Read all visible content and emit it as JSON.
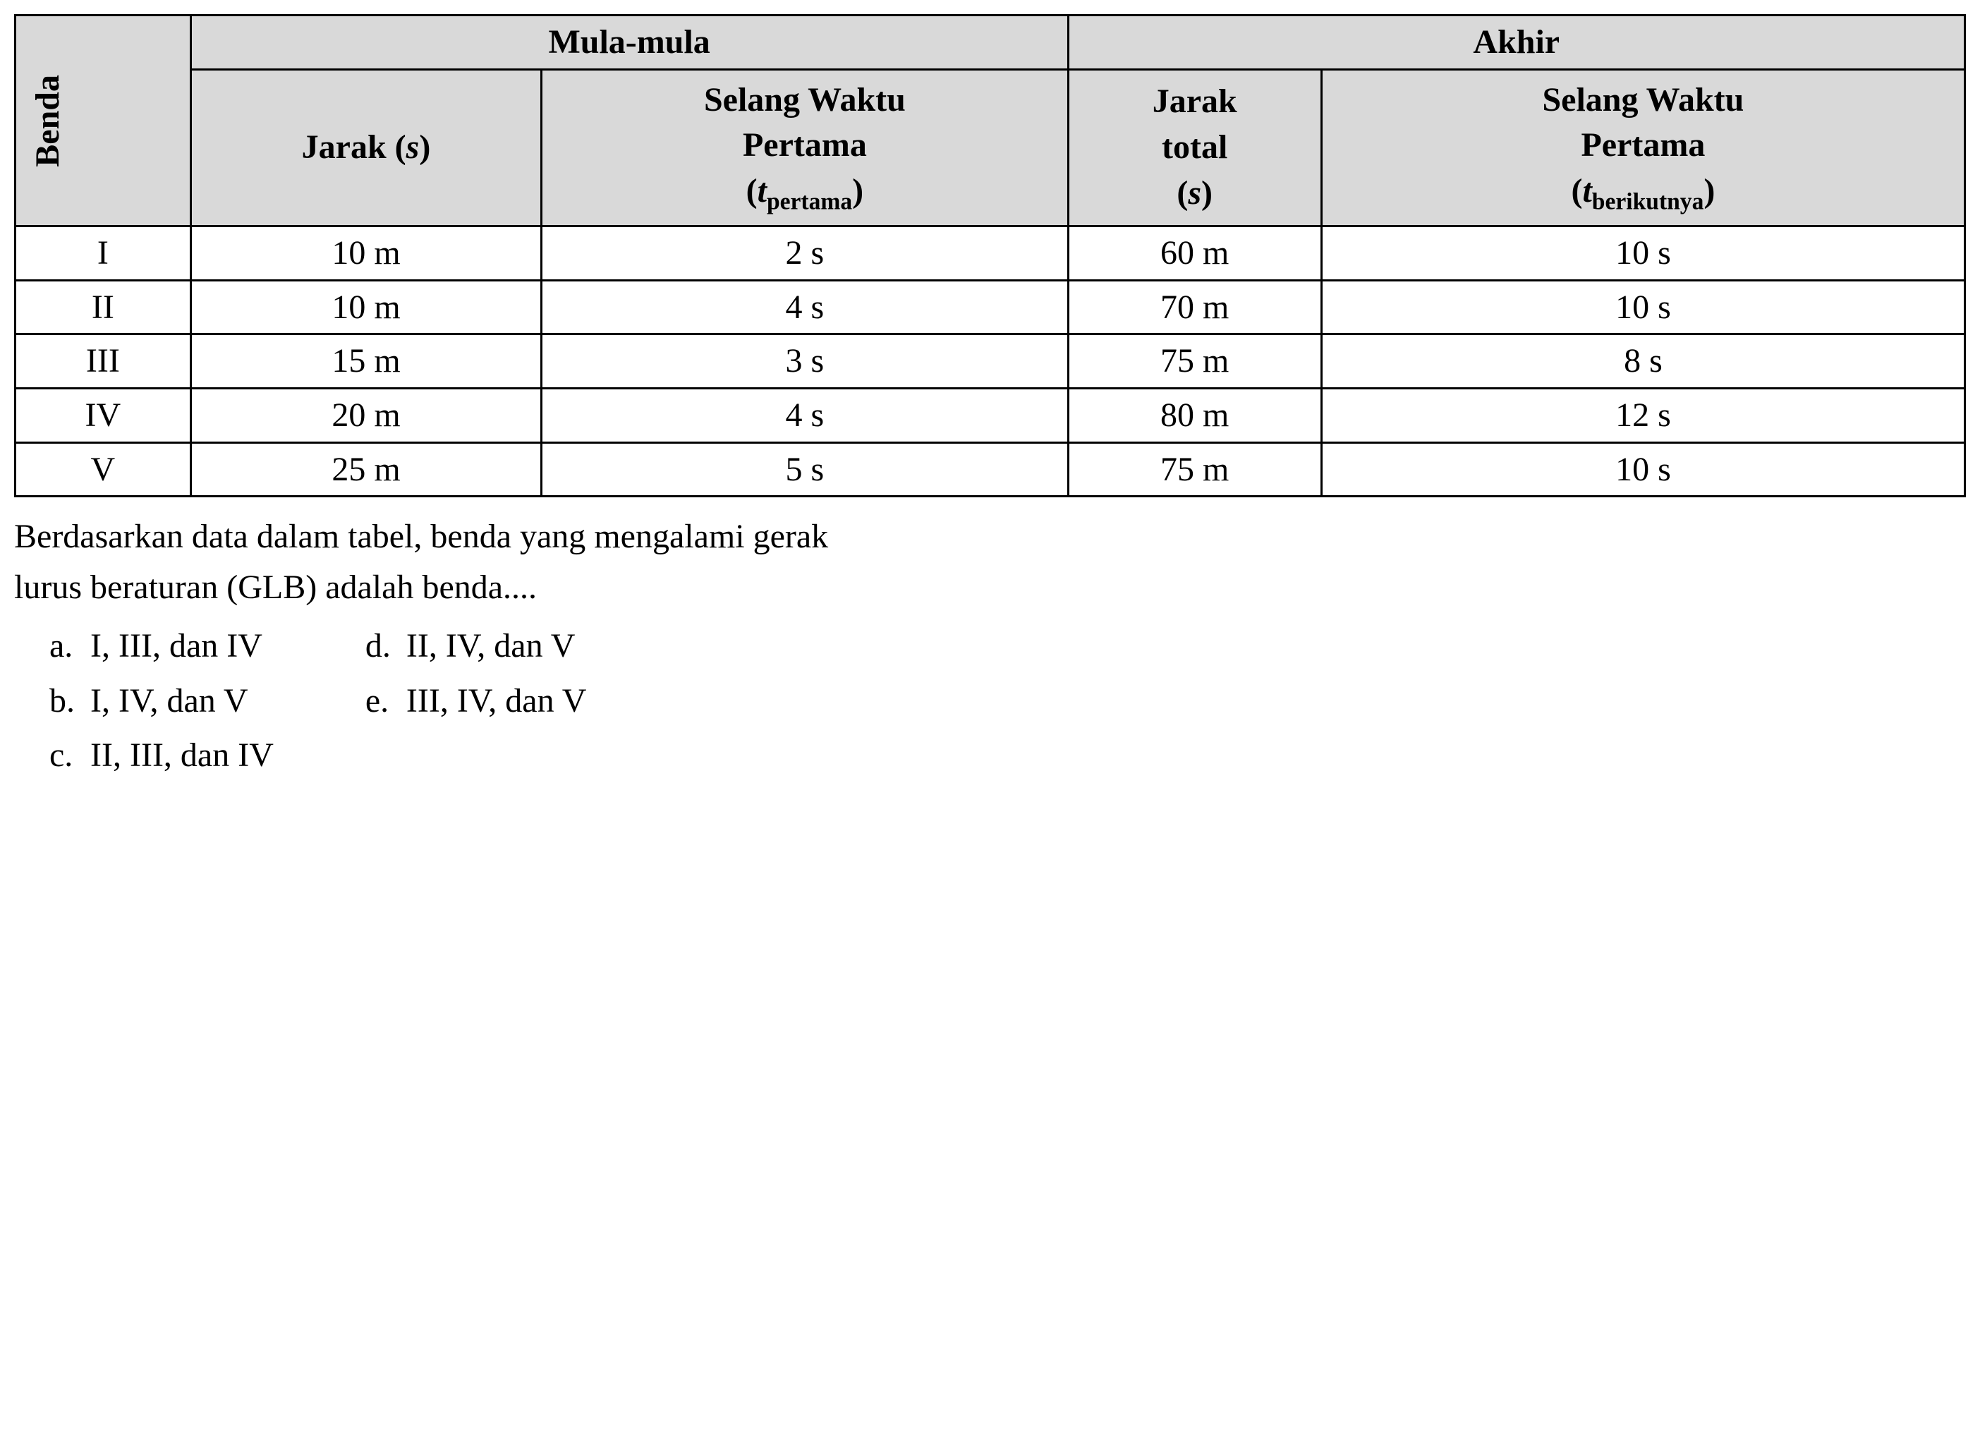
{
  "table": {
    "header_bg": "#d9d9d9",
    "border_color": "#000000",
    "text_color": "#000000",
    "font_family": "Times New Roman",
    "base_fontsize_pt": 36,
    "columns": {
      "benda": "Benda",
      "mula_group": "Mula-mula",
      "akhir_group": "Akhir",
      "jarak1_label": "Jarak (",
      "jarak1_var": "s",
      "jarak1_close": ")",
      "selang1_line1": "Selang Waktu",
      "selang1_line2": "Pertama",
      "selang1_paren_open": "(",
      "selang1_var": "t",
      "selang1_sub": "pertama",
      "selang1_paren_close": ")",
      "jarak2_line1": "Jarak",
      "jarak2_line2": "total",
      "jarak2_paren_open": "(",
      "jarak2_var": "s",
      "jarak2_paren_close": ")",
      "selang2_line1": "Selang Waktu",
      "selang2_line2": "Pertama",
      "selang2_paren_open": "(",
      "selang2_var": "t",
      "selang2_sub": "berikutnya",
      "selang2_paren_close": ")"
    },
    "rows": [
      {
        "benda": "I",
        "jarak1": "10 m",
        "selang1": "2 s",
        "jarak2": "60 m",
        "selang2": "10 s"
      },
      {
        "benda": "II",
        "jarak1": "10 m",
        "selang1": "4 s",
        "jarak2": "70 m",
        "selang2": "10 s"
      },
      {
        "benda": "III",
        "jarak1": "15 m",
        "selang1": "3 s",
        "jarak2": "75 m",
        "selang2": "8 s"
      },
      {
        "benda": "IV",
        "jarak1": "20 m",
        "selang1": "4 s",
        "jarak2": "80 m",
        "selang2": "12 s"
      },
      {
        "benda": "V",
        "jarak1": "25 m",
        "selang1": "5 s",
        "jarak2": "75 m",
        "selang2": "10 s"
      }
    ]
  },
  "question": {
    "line1": "Berdasarkan data dalam tabel, benda yang mengalami gerak",
    "line2": "lurus beraturan (GLB) adalah benda...."
  },
  "options": {
    "a": {
      "letter": "a.",
      "text": "I, III, dan IV"
    },
    "b": {
      "letter": "b.",
      "text": "I, IV, dan V"
    },
    "c": {
      "letter": "c.",
      "text": "II, III, dan IV"
    },
    "d": {
      "letter": "d.",
      "text": "II, IV, dan V"
    },
    "e": {
      "letter": "e.",
      "text": "III, IV, dan V"
    }
  }
}
